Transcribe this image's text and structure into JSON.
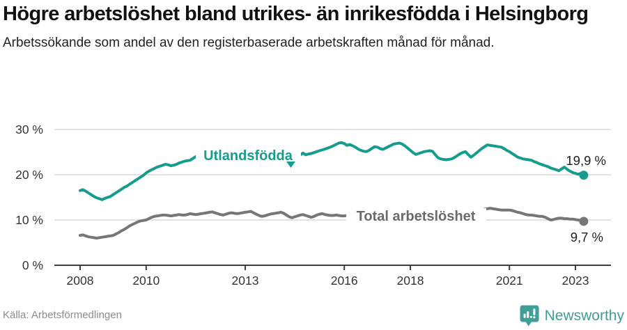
{
  "header": {
    "title": "Högre arbetslöshet bland utrikes- än inrikesfödda i Helsingborg",
    "subtitle": "Arbetssökande som andel av den registerbaserade arbetskraften månad för månad."
  },
  "footer": {
    "source": "Källa: Arbetsförmedlingen",
    "brand": "Newsworthy",
    "brand_icon": "newsworthy-bar-chart-speech-bubble-icon"
  },
  "colors": {
    "series_foreign": "#169c8f",
    "series_total": "#76767a",
    "series_total_label": "#6a6a6e",
    "grid": "#d9d9d9",
    "axis": "#3c3c3c",
    "tick_text": "#333333",
    "annotation_text": "#1d1d1d",
    "brand_teal": "#3f9e98",
    "background": "#ffffff"
  },
  "chart_data": {
    "type": "line",
    "title": "Högre arbetslöshet bland utrikes- än inrikesfödda i Helsingborg",
    "subtitle": "Arbetssökande som andel av den registerbaserade arbetskraften månad för månad.",
    "x_unit": "month",
    "x_start": "2008-01",
    "x_end": "2023-04",
    "xlabel": "",
    "ylabel": "",
    "ylim": [
      0,
      32
    ],
    "grid": "horizontal",
    "legend": "inline-labels",
    "x_tick_years": [
      2008,
      2010,
      2013,
      2016,
      2018,
      2021,
      2023
    ],
    "x_tick_labels": [
      "2008",
      "2010",
      "2013",
      "2016",
      "2018",
      "2021",
      "2023"
    ],
    "y_ticks": [
      {
        "value": 0,
        "label": "0 %"
      },
      {
        "value": 10,
        "label": "10 %"
      },
      {
        "value": 20,
        "label": "20 %"
      },
      {
        "value": 30,
        "label": "30 %"
      }
    ],
    "series": [
      {
        "name": "Utlandsfödda",
        "end_label": "19,9 %",
        "end_value": 19.9,
        "color": "#169c8f",
        "values": [
          16.5,
          16.7,
          16.4,
          16.0,
          15.6,
          15.2,
          14.9,
          14.7,
          14.5,
          14.8,
          15.0,
          15.2,
          15.6,
          16.0,
          16.4,
          16.8,
          17.2,
          17.5,
          17.9,
          18.3,
          18.7,
          19.1,
          19.5,
          19.9,
          20.4,
          20.8,
          21.1,
          21.4,
          21.7,
          21.9,
          22.1,
          22.3,
          22.2,
          22.0,
          22.1,
          22.3,
          22.6,
          22.8,
          23.0,
          23.1,
          23.2,
          23.6,
          24.0,
          24.3,
          24.5,
          24.4,
          24.3,
          24.4,
          24.5,
          24.7,
          24.6,
          24.5,
          24.6,
          24.8,
          24.9,
          24.8,
          24.6,
          24.5,
          24.6,
          24.7,
          24.8,
          24.9,
          24.8,
          24.7,
          24.6,
          24.5,
          24.4,
          24.5,
          24.6,
          24.5,
          24.4,
          24.3,
          24.4,
          24.5,
          24.4,
          24.3,
          24.4,
          24.5,
          24.4,
          24.3,
          24.4,
          24.8,
          24.4,
          24.6,
          24.7,
          24.9,
          25.1,
          25.3,
          25.5,
          25.7,
          25.9,
          26.1,
          26.4,
          26.7,
          27.0,
          27.1,
          26.9,
          26.5,
          26.7,
          26.4,
          26.1,
          25.7,
          25.4,
          25.2,
          25.1,
          25.4,
          25.8,
          26.2,
          26.1,
          25.8,
          25.6,
          25.9,
          26.2,
          26.5,
          26.8,
          26.9,
          27.0,
          26.8,
          26.4,
          25.9,
          25.4,
          24.9,
          24.5,
          24.7,
          24.9,
          25.1,
          25.2,
          25.3,
          25.2,
          24.5,
          23.8,
          23.5,
          23.4,
          23.3,
          23.4,
          23.5,
          23.8,
          24.2,
          24.6,
          24.9,
          25.1,
          24.5,
          23.9,
          24.3,
          24.8,
          25.3,
          25.8,
          26.2,
          26.6,
          26.5,
          26.4,
          26.3,
          26.2,
          26.1,
          25.8,
          25.4,
          25.1,
          24.7,
          24.3,
          23.9,
          23.7,
          23.5,
          23.4,
          23.3,
          23.2,
          22.9,
          22.7,
          22.4,
          22.2,
          22.0,
          21.8,
          21.5,
          21.3,
          21.1,
          20.9,
          21.3,
          21.7,
          21.2,
          20.8,
          20.5,
          20.3,
          20.1,
          20.3,
          19.9
        ]
      },
      {
        "name": "Total arbetslöshet",
        "end_label": "9,7 %",
        "end_value": 9.7,
        "color": "#76767a",
        "values": [
          6.6,
          6.7,
          6.5,
          6.3,
          6.2,
          6.1,
          6.0,
          6.1,
          6.2,
          6.3,
          6.4,
          6.5,
          6.6,
          6.9,
          7.2,
          7.6,
          7.9,
          8.3,
          8.7,
          9.0,
          9.3,
          9.6,
          9.8,
          9.9,
          10.0,
          10.3,
          10.6,
          10.8,
          10.9,
          11.0,
          11.1,
          11.1,
          11.0,
          10.9,
          11.0,
          11.1,
          11.2,
          11.1,
          11.1,
          11.2,
          11.4,
          11.3,
          11.2,
          11.3,
          11.4,
          11.5,
          11.6,
          11.7,
          11.8,
          11.6,
          11.4,
          11.2,
          11.1,
          11.3,
          11.5,
          11.6,
          11.5,
          11.4,
          11.5,
          11.6,
          11.7,
          11.8,
          11.9,
          11.6,
          11.3,
          11.0,
          10.8,
          10.9,
          11.1,
          11.3,
          11.4,
          11.5,
          11.6,
          11.7,
          11.5,
          11.1,
          10.7,
          10.5,
          10.7,
          10.9,
          11.1,
          11.2,
          11.0,
          10.8,
          10.6,
          10.8,
          11.1,
          11.3,
          11.4,
          11.2,
          11.1,
          11.0,
          11.0,
          11.1,
          11.0,
          10.9,
          10.9,
          11.0,
          10.9,
          10.8,
          10.8,
          10.7,
          10.6,
          10.6,
          10.5,
          10.5,
          10.6,
          10.6,
          10.5,
          10.5,
          10.6,
          10.7,
          10.6,
          10.5,
          10.4,
          10.4,
          10.5,
          10.5,
          10.4,
          10.4,
          10.3,
          10.3,
          10.2,
          10.2,
          10.3,
          10.3,
          10.4,
          10.4,
          10.3,
          10.3,
          10.4,
          10.4,
          10.4,
          10.5,
          10.5,
          10.6,
          10.6,
          10.7,
          10.8,
          10.9,
          11.0,
          11.1,
          11.2,
          11.4,
          11.6,
          11.9,
          12.2,
          12.4,
          12.5,
          12.6,
          12.5,
          12.4,
          12.3,
          12.2,
          12.2,
          12.2,
          12.2,
          12.1,
          11.9,
          11.7,
          11.6,
          11.4,
          11.2,
          11.1,
          11.1,
          11.0,
          10.9,
          10.8,
          10.8,
          10.6,
          10.3,
          10.0,
          10.1,
          10.3,
          10.4,
          10.4,
          10.3,
          10.3,
          10.2,
          10.2,
          10.1,
          10.0,
          9.9,
          9.7
        ]
      }
    ]
  }
}
